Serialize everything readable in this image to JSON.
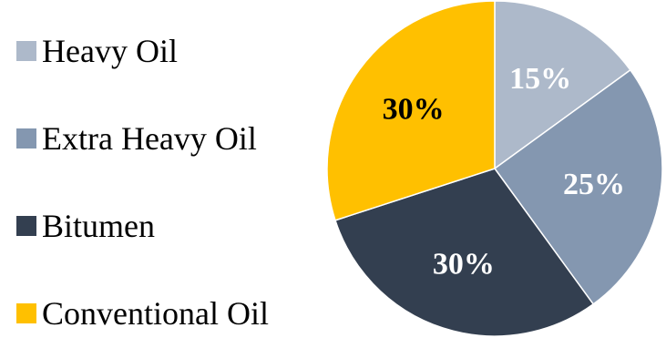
{
  "chart_data": {
    "type": "pie",
    "title": "",
    "legend_position": "left",
    "slices": [
      {
        "name": "Heavy Oil",
        "value": 15,
        "label": "15%",
        "color": "#adb9ca",
        "label_color": "#ffffff"
      },
      {
        "name": "Extra Heavy Oil",
        "value": 25,
        "label": "25%",
        "color": "#8497b0",
        "label_color": "#ffffff"
      },
      {
        "name": "Bitumen",
        "value": 30,
        "label": "30%",
        "color": "#333f50",
        "label_color": "#ffffff"
      },
      {
        "name": "Conventional Oil",
        "value": 30,
        "label": "30%",
        "color": "#ffc000",
        "label_color": "#000000"
      }
    ]
  }
}
